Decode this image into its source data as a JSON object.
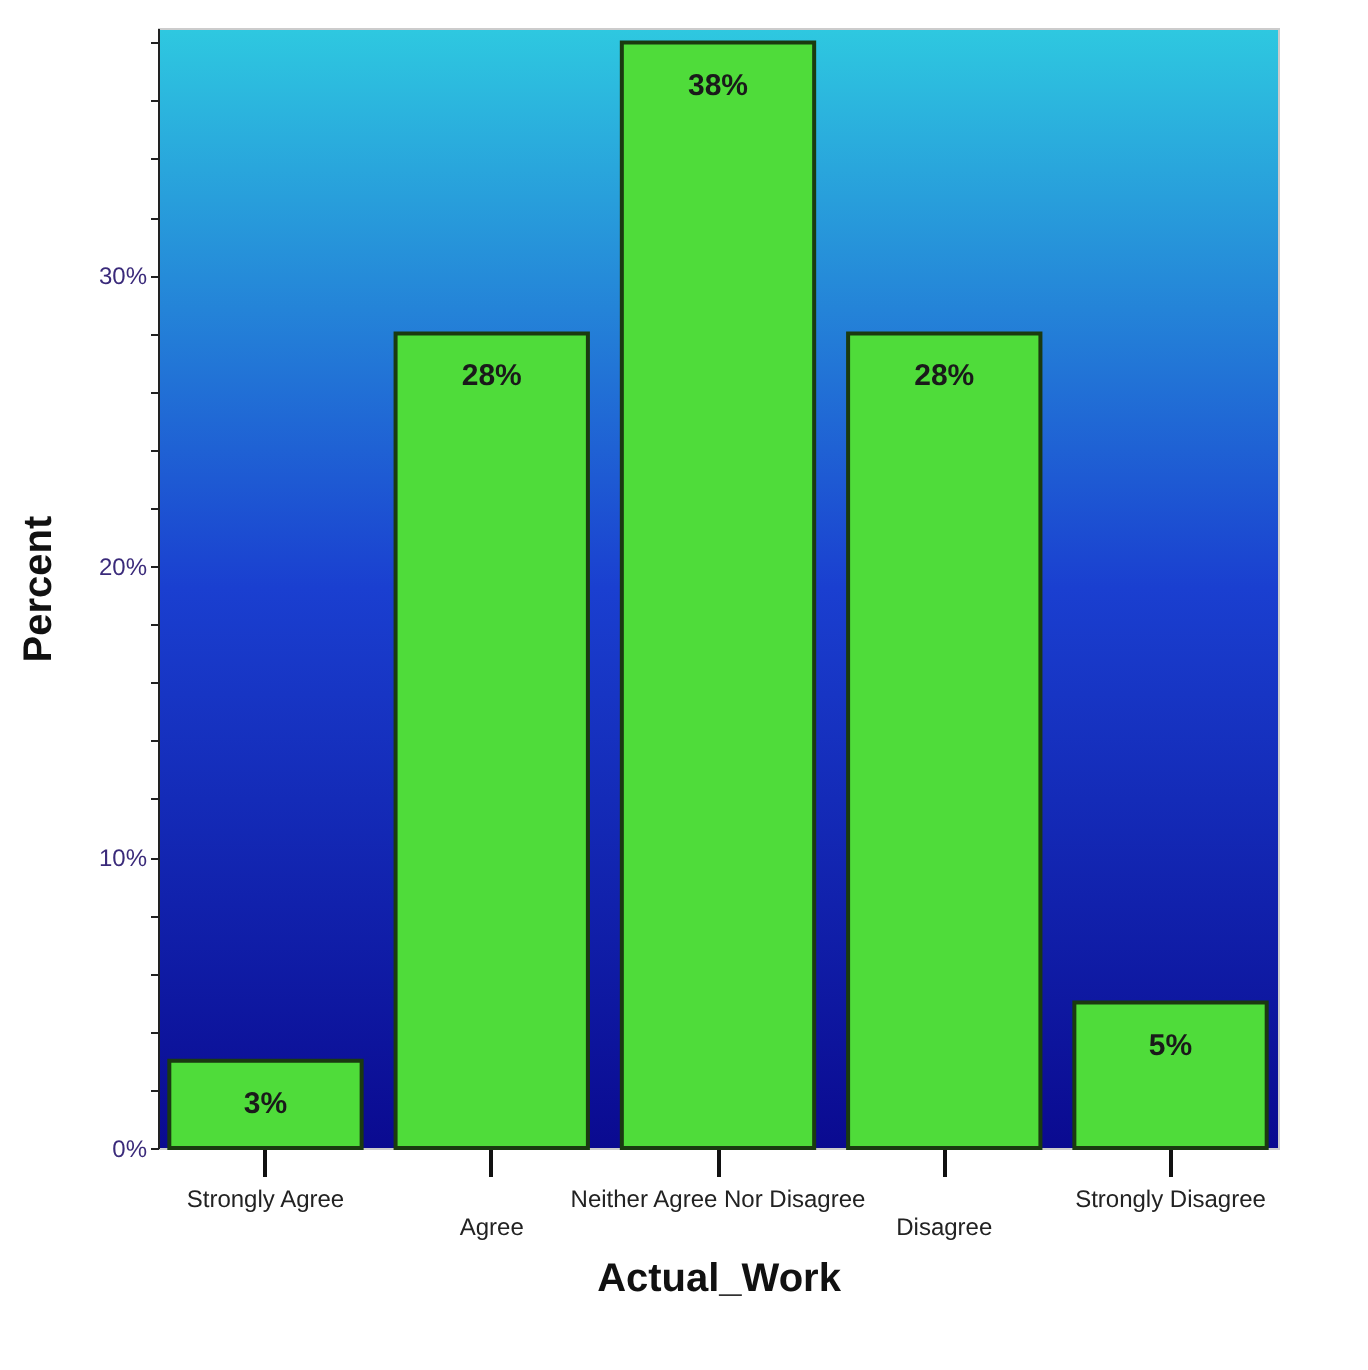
{
  "chart_data": {
    "type": "bar",
    "xlabel": "Actual_Work",
    "ylabel": "Percent",
    "categories": [
      "Strongly Agree",
      "Agree",
      "Neither Agree Nor Disagree",
      "Disagree",
      "Strongly Disagree"
    ],
    "values": [
      3,
      28,
      38,
      28,
      5
    ],
    "value_labels": [
      "3%",
      "28%",
      "38%",
      "28%",
      "5%"
    ],
    "color": "#4fdc3a",
    "ylim": [
      0,
      38.5
    ],
    "yticks": [
      {
        "value": 0,
        "label": "0%"
      },
      {
        "value": 2,
        "label": null
      },
      {
        "value": 4,
        "label": null
      },
      {
        "value": 6,
        "label": null
      },
      {
        "value": 8,
        "label": null
      },
      {
        "value": 10,
        "label": "10%"
      },
      {
        "value": 12,
        "label": null
      },
      {
        "value": 14,
        "label": null
      },
      {
        "value": 16,
        "label": null
      },
      {
        "value": 18,
        "label": null
      },
      {
        "value": 20,
        "label": "20%"
      },
      {
        "value": 22,
        "label": null
      },
      {
        "value": 24,
        "label": null
      },
      {
        "value": 26,
        "label": null
      },
      {
        "value": 28,
        "label": null
      },
      {
        "value": 30,
        "label": "30%"
      },
      {
        "value": 32,
        "label": null
      },
      {
        "value": 34,
        "label": null
      },
      {
        "value": 36,
        "label": null
      },
      {
        "value": 38,
        "label": null
      }
    ],
    "grid": false
  }
}
